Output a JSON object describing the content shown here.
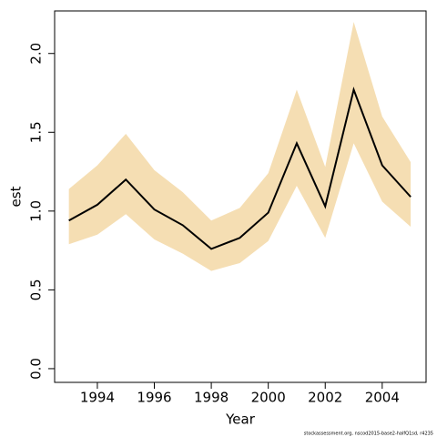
{
  "chart_data": {
    "type": "line",
    "x_label": "Year",
    "y_label": "est",
    "footnote": "stockassessment.org, nscod2015-base2-halfQ1sd, r4235",
    "x": [
      1993,
      1994,
      1995,
      1996,
      1997,
      1998,
      1999,
      2000,
      2001,
      2002,
      2003,
      2004,
      2005
    ],
    "values": [
      0.94,
      1.04,
      1.2,
      1.01,
      0.91,
      0.76,
      0.83,
      0.99,
      1.43,
      1.03,
      1.77,
      1.29,
      1.09
    ],
    "upper": [
      1.14,
      1.29,
      1.49,
      1.26,
      1.12,
      0.94,
      1.02,
      1.24,
      1.77,
      1.28,
      2.2,
      1.6,
      1.31
    ],
    "lower": [
      0.79,
      0.85,
      0.98,
      0.82,
      0.73,
      0.62,
      0.67,
      0.81,
      1.16,
      0.83,
      1.43,
      1.06,
      0.9
    ],
    "color": "#000000",
    "band_color": "#f5deb3",
    "xlim": [
      1992.5,
      2005.54
    ],
    "xticks": [
      1994,
      1996,
      1998,
      2000,
      2002,
      2004
    ],
    "ylim": [
      -0.087,
      2.27
    ],
    "yticks": [
      {
        "value": 0,
        "label": "0.0"
      },
      {
        "value": 0.5,
        "label": "0.5"
      },
      {
        "value": 1,
        "label": "1.0"
      },
      {
        "value": 1.5,
        "label": "1.5"
      },
      {
        "value": 2,
        "label": "2.0"
      }
    ]
  }
}
